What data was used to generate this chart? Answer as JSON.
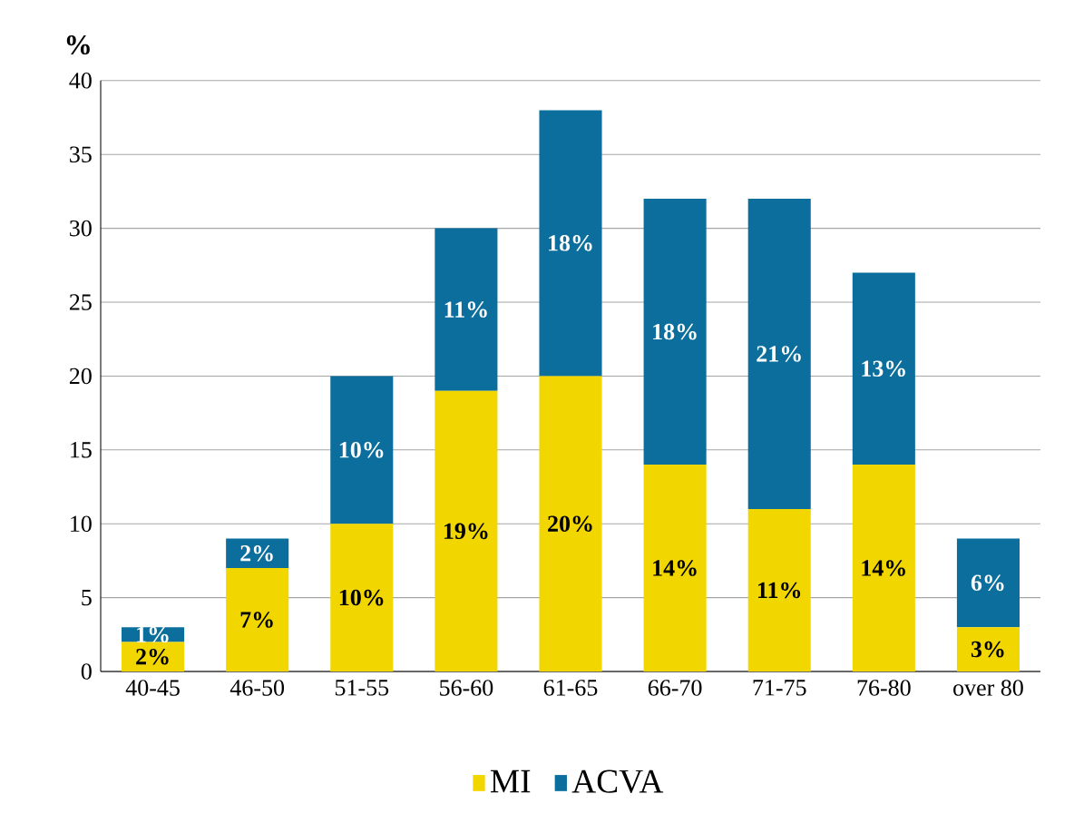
{
  "chart_data": {
    "type": "bar",
    "stacked": true,
    "ylabel": "%",
    "categories": [
      "40-45",
      "46-50",
      "51-55",
      "56-60",
      "61-65",
      "66-70",
      "71-75",
      "76-80",
      "over 80"
    ],
    "series": [
      {
        "name": "MI",
        "color": "#f2d600",
        "values": [
          2,
          7,
          10,
          19,
          20,
          14,
          11,
          14,
          3
        ],
        "value_labels": [
          "2%",
          "7%",
          "10%",
          "19%",
          "20%",
          "14%",
          "11%",
          "14%",
          "3%"
        ]
      },
      {
        "name": "ACVA",
        "color": "#0b6e9c",
        "values": [
          1,
          2,
          10,
          11,
          18,
          18,
          21,
          13,
          6
        ],
        "value_labels": [
          "1%",
          "2%",
          "10%",
          "11%",
          "18%",
          "18%",
          "21%",
          "13%",
          "6%"
        ]
      }
    ],
    "ylim": [
      0,
      40
    ],
    "yticks": [
      0,
      5,
      10,
      15,
      20,
      25,
      30,
      35,
      40
    ],
    "grid": "y",
    "legend": "bottom"
  }
}
